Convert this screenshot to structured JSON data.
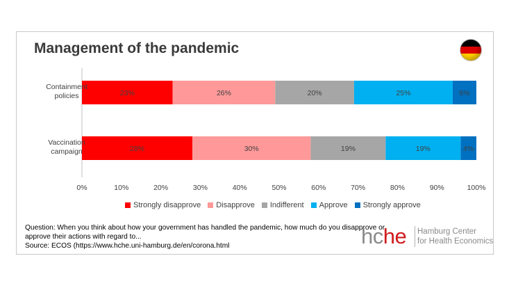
{
  "title": "Management of the pandemic",
  "flag": "germany-flag",
  "chart_data": {
    "type": "bar",
    "orientation": "horizontal",
    "stacked": true,
    "categories": [
      "Containment policies",
      "Vaccination campaign"
    ],
    "category_lines": [
      [
        "Containment",
        "policies"
      ],
      [
        "Vaccination",
        "campaign"
      ]
    ],
    "series": [
      {
        "name": "Strongly disapprove",
        "values": [
          23,
          28
        ],
        "labels": [
          "23%",
          "28%"
        ],
        "color": "#ff0000"
      },
      {
        "name": "Disapprove",
        "values": [
          26,
          30
        ],
        "labels": [
          "26%",
          "30%"
        ],
        "color": "#ff9999"
      },
      {
        "name": "Indifferent",
        "values": [
          20,
          19
        ],
        "labels": [
          "20%",
          "19%"
        ],
        "color": "#a6a6a6"
      },
      {
        "name": "Approve",
        "values": [
          25,
          19
        ],
        "labels": [
          "25%",
          "19%"
        ],
        "color": "#00b0f0"
      },
      {
        "name": "Strongly approve",
        "values": [
          6,
          4
        ],
        "labels": [
          "6%",
          "4%"
        ],
        "color": "#0070c0"
      }
    ],
    "x_ticks": [
      "0%",
      "10%",
      "20%",
      "30%",
      "40%",
      "50%",
      "60%",
      "70%",
      "80%",
      "90%",
      "100%"
    ],
    "xlim": [
      0,
      100
    ],
    "grid": false,
    "legend_position": "bottom"
  },
  "note": {
    "line1": "Question: When you think about how your government has handled the pandemic, how much do you disapprove or",
    "line2": "approve their actions with regard to...",
    "line3": "Source: ECOS (https://www.hche.uni-hamburg.de/en/corona.html"
  },
  "logo": {
    "mark_gray": "hc",
    "mark_red": "he",
    "line1": "Hamburg Center",
    "line2": "for Health Economics"
  }
}
